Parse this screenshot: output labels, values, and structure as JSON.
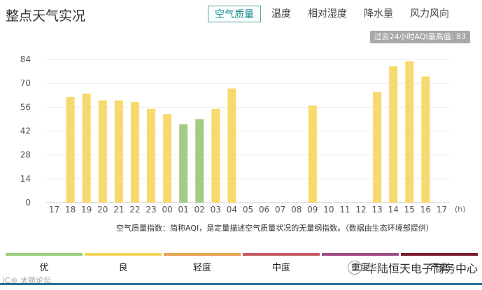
{
  "title": "整点天气实况",
  "tabs": [
    {
      "label": "空气质量",
      "active": true
    },
    {
      "label": "温度",
      "active": false
    },
    {
      "label": "相对湿度",
      "active": false
    },
    {
      "label": "降水量",
      "active": false
    },
    {
      "label": "风力风向",
      "active": false
    }
  ],
  "badge": "过去24小时AQI最高值: 83",
  "note": "空气质量指数：简称AQI，是定量描述空气质量状况的无量纲指数。（数据由生态环境部提供）",
  "chart_data": {
    "type": "bar",
    "categories": [
      "17",
      "18",
      "19",
      "20",
      "21",
      "22",
      "23",
      "00",
      "01",
      "02",
      "03",
      "04",
      "05",
      "06",
      "07",
      "08",
      "09",
      "10",
      "11",
      "12",
      "13",
      "14",
      "15",
      "16",
      "17"
    ],
    "values": [
      null,
      62,
      64,
      60,
      60,
      59,
      55,
      52,
      46,
      49,
      55,
      67,
      null,
      null,
      null,
      null,
      57,
      null,
      null,
      null,
      65,
      80,
      83,
      74,
      null
    ],
    "colors": [
      "#f7da6d",
      "#f7da6d",
      "#f7da6d",
      "#f7da6d",
      "#f7da6d",
      "#f7da6d",
      "#f7da6d",
      "#f7da6d",
      "#a2cc83",
      "#a2cc83",
      "#f7da6d",
      "#f7da6d",
      "#f7da6d",
      "#f7da6d",
      "#f7da6d",
      "#f7da6d",
      "#f7da6d",
      "#f7da6d",
      "#f7da6d",
      "#f7da6d",
      "#f7da6d",
      "#f7da6d",
      "#f7da6d",
      "#f7da6d",
      "#f7da6d"
    ],
    "yticks": [
      0,
      14,
      28,
      42,
      56,
      70,
      84
    ],
    "ylim": [
      0,
      91
    ],
    "x_unit": "(h)",
    "grid": true
  },
  "legend": [
    {
      "label": "优",
      "color": "#9ccd7d"
    },
    {
      "label": "良",
      "color": "#f6d45e"
    },
    {
      "label": "轻度",
      "color": "#e5a653"
    },
    {
      "label": "中度",
      "color": "#c85a63"
    },
    {
      "label": "重度",
      "color": "#a04c84"
    },
    {
      "label": "严重",
      "color": "#7b1c2a"
    }
  ],
  "watermark_left": "iC® 太航论坛",
  "watermark_right": "华陆恒天电子商务中心"
}
